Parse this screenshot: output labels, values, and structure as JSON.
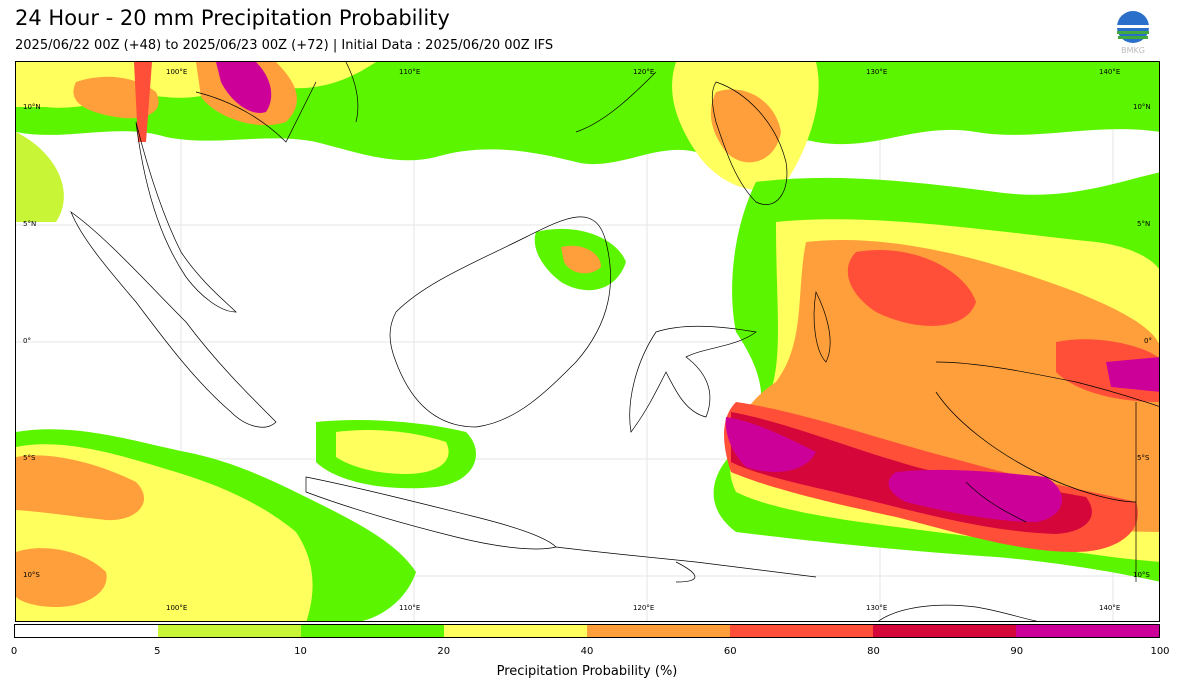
{
  "title": "24 Hour - 20 mm Precipitation Probability",
  "subtitle": "2025/06/22 00Z (+48) to 2025/06/23 00Z (+72) | Initial Data : 2025/06/20 00Z IFS",
  "logo": {
    "icon": "bmkg-logo-icon",
    "text": "BMKG"
  },
  "map": {
    "lon_top": [
      "100°E",
      "110°E",
      "120°E",
      "130°E",
      "140°E"
    ],
    "lon_bottom": [
      "100°E",
      "110°E",
      "120°E",
      "130°E",
      "140°E"
    ],
    "lat_left": [
      "10°N",
      "5°N",
      "0°",
      "5°S",
      "10°S"
    ],
    "lat_right": [
      "10°N",
      "5°N",
      "0°",
      "5°S",
      "10°S"
    ]
  },
  "legend": {
    "title": "Precipitation Probability (%)",
    "ticks": [
      "0",
      "5",
      "10",
      "20",
      "40",
      "60",
      "80",
      "90",
      "100"
    ],
    "colors": [
      "#ffffff",
      "#c8f536",
      "#5cf500",
      "#ffff5e",
      "#ff9f3b",
      "#ff4f38",
      "#d4063a",
      "#cc0099"
    ]
  }
}
